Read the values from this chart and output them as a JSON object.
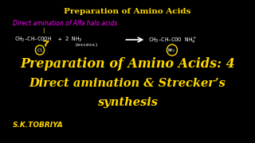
{
  "bg_color": "#000000",
  "title_text": "Preparation of Amino Acids",
  "title_color": "#FFD700",
  "subtitle_text": "Direct amination of Alfa halo acids",
  "subtitle_color": "#FF00FF",
  "reaction_left": "CH₃–CH–COOH  + 2 NH₃",
  "reaction_excess": "(excess)",
  "reaction_right": "CH₃–CH–COO NH₄",
  "reaction_color": "#FFFFFF",
  "cl_label": "Cl",
  "nh2_label": "NH₂",
  "overlay_line1": "Preparation of Amino Acids: 4",
  "overlay_line2": "Direct amination & Strecker’s",
  "overlay_line3": "synthesis",
  "overlay_color": "#FFD700",
  "watermark": "S.K.TOBRIYA",
  "watermark_color": "#FFD700",
  "arrow_color": "#FFFFFF",
  "circle_color": "#FFD700",
  "indicator_color": "#FFD700"
}
